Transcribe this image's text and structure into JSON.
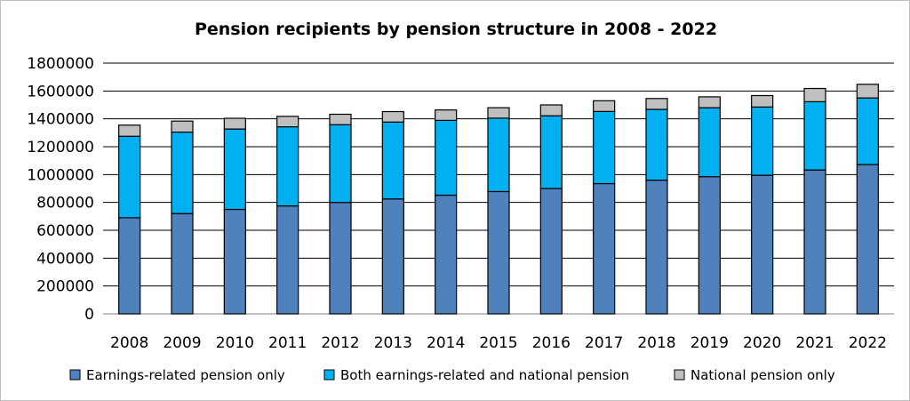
{
  "chart_data": {
    "type": "bar",
    "stacked": true,
    "title": "Pension recipients by pension structure in 2008 - 2022",
    "xlabel": "",
    "ylabel": "",
    "categories": [
      "2008",
      "2009",
      "2010",
      "2011",
      "2012",
      "2013",
      "2014",
      "2015",
      "2016",
      "2017",
      "2018",
      "2019",
      "2020",
      "2021",
      "2022"
    ],
    "series": [
      {
        "name": "Earnings-related pension only",
        "color": "#4f81bd",
        "values": [
          690000,
          720000,
          750000,
          775000,
          800000,
          825000,
          852000,
          878000,
          900000,
          935000,
          960000,
          985000,
          995000,
          1033000,
          1072000
        ]
      },
      {
        "name": "Both earnings-related and national pension",
        "color": "#00b0f0",
        "values": [
          585000,
          585000,
          577000,
          568000,
          558000,
          552000,
          537000,
          527000,
          522000,
          518000,
          508000,
          495000,
          490000,
          490000,
          478000
        ]
      },
      {
        "name": "National pension only",
        "color": "#bfbfbf",
        "values": [
          80000,
          79000,
          77000,
          75000,
          75000,
          75000,
          75000,
          75000,
          78000,
          77000,
          78000,
          78000,
          82000,
          95000,
          98000
        ]
      }
    ],
    "ylim": [
      0,
      1800000
    ],
    "yticks": [
      0,
      200000,
      400000,
      600000,
      800000,
      1000000,
      1200000,
      1400000,
      1600000,
      1800000
    ],
    "grid": true,
    "legend_position": "bottom"
  }
}
